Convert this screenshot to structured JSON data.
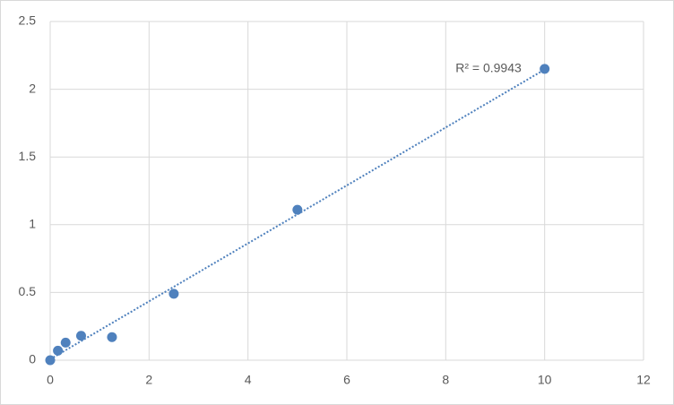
{
  "chart_data": {
    "type": "scatter",
    "x": [
      0,
      0.156,
      0.3125,
      0.625,
      1.25,
      2.5,
      5,
      10
    ],
    "values": [
      0,
      0.07,
      0.13,
      0.18,
      0.17,
      0.49,
      1.11,
      2.15
    ],
    "color": "#4f81bd",
    "trendline": "linear",
    "annotation": "R² = 0.9943",
    "xlim": [
      0,
      12
    ],
    "xticks": [
      0,
      2,
      4,
      6,
      8,
      10,
      12
    ],
    "ylim": [
      0,
      2.5
    ],
    "yticks": [
      0,
      0.5,
      1,
      1.5,
      2,
      2.5
    ],
    "grid": true
  }
}
